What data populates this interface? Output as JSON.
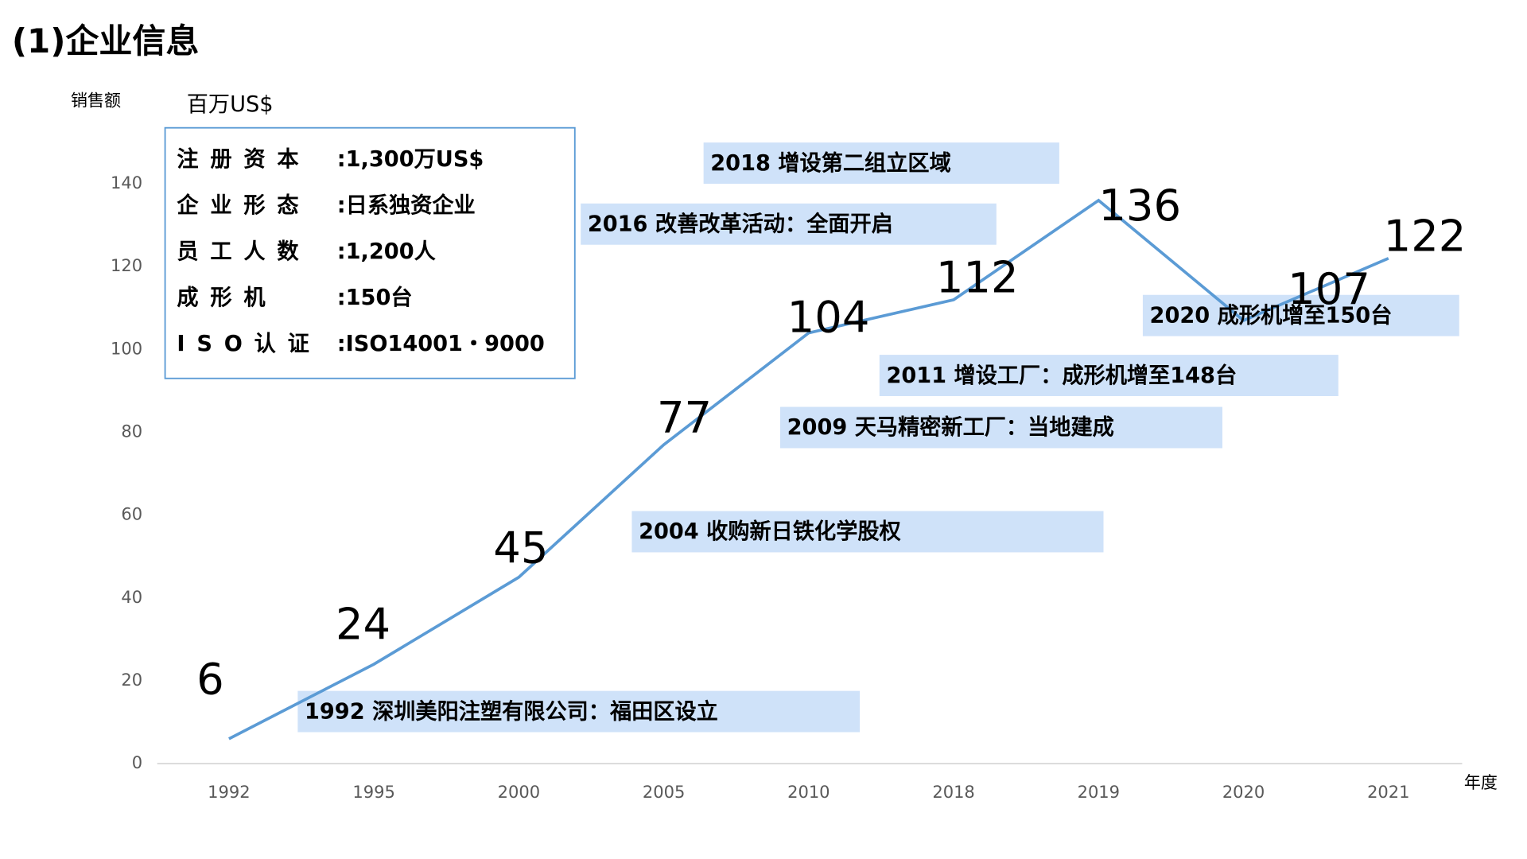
{
  "chart_data": {
    "type": "line",
    "title": "(1)企业信息",
    "y_label": "销售额",
    "unit": "百万US$",
    "x_label": "年度",
    "categories": [
      "1992",
      "1995",
      "2000",
      "2005",
      "2010",
      "2018",
      "2019",
      "2020",
      "2021"
    ],
    "values": [
      6,
      24,
      45,
      77,
      104,
      112,
      136,
      107,
      122
    ],
    "color": "#5b9bd5",
    "ylim": [
      0,
      140
    ],
    "yticks": [
      0,
      20,
      40,
      60,
      80,
      100,
      120,
      140
    ],
    "grid": false,
    "annotations": [
      "2018 增设第二组立区域",
      "2016 改善改革活动：全面开启",
      "2020 成形机增至150台",
      "2011 增设工厂：成形机增至148台",
      "2009 天马精密新工厂：当地建成",
      "2004 收购新日铁化学股权",
      "1992 深圳美阳注塑有限公司：福田区设立"
    ],
    "info": [
      {
        "label": "注册资本",
        "value": ":1,300万US$"
      },
      {
        "label": "企业形态",
        "value": ":日系独资企业"
      },
      {
        "label": "员工人数",
        "value": ":1,200人"
      },
      {
        "label": "成形机",
        "value": ":150台"
      },
      {
        "label": "ISO认证",
        "value": ":ISO14001・9000"
      }
    ]
  }
}
